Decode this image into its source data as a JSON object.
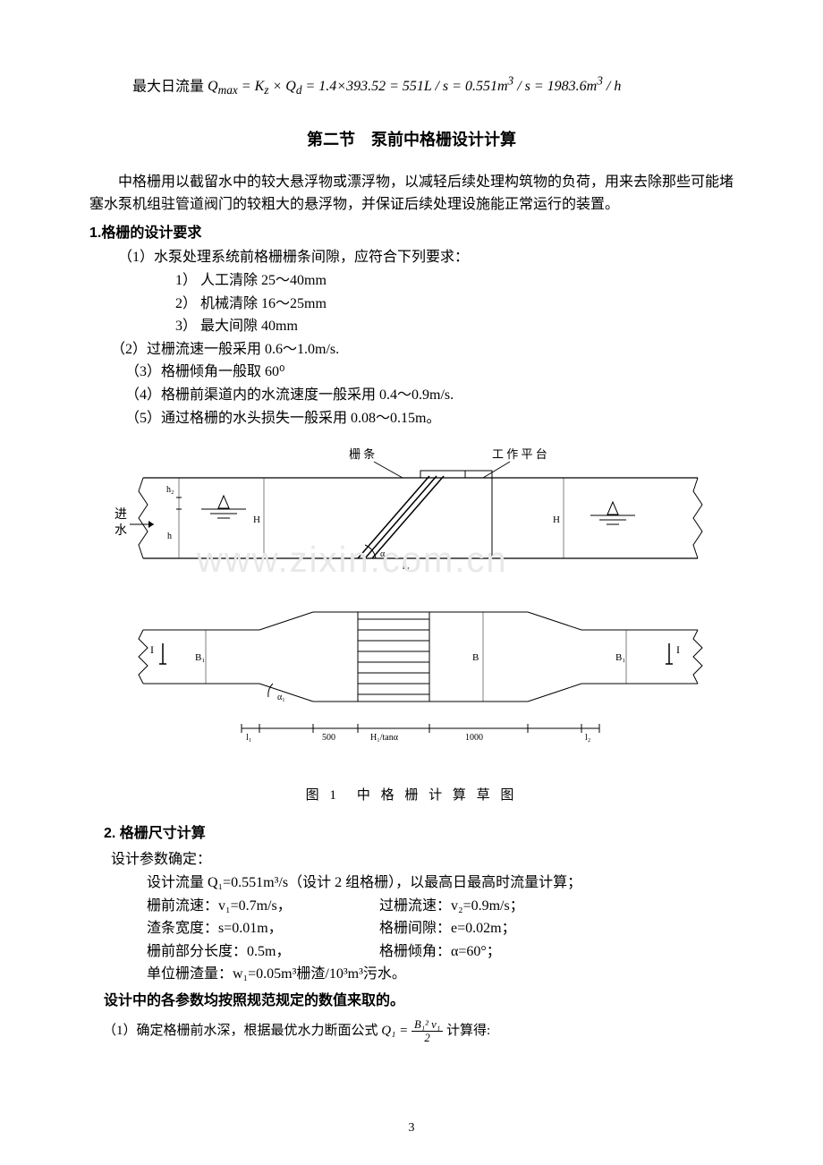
{
  "topFormula": {
    "prefix_cn": "最大日流量 ",
    "expr": "Q<sub>max</sub> = K<sub>z</sub> × Q<sub>d</sub> = 1.4×393.52 = 551L / s = 0.551m<sup>3</sup> / s = 1983.6m<sup>3</sup> / h"
  },
  "sectionTitle": "第二节　泵前中格栅设计计算",
  "intro": "中格栅用以截留水中的较大悬浮物或漂浮物，以减轻后续处理构筑物的负荷，用来去除那些可能堵塞水泵机组驻管道阀门的较粗大的悬浮物，并保证后续处理设施能正常运行的装置。",
  "h1": "1.格栅的设计要求",
  "req1": "（1）水泵处理系统前格栅栅条间隙，应符合下列要求：",
  "req1a": "1） 人工清除  25～40mm",
  "req1b": "2） 机械清除  16～25mm",
  "req1c": "3） 最大间隙  40mm",
  "req2": "（2）过栅流速一般采用 0.6～1.0m/s.",
  "req3": "（3）格栅倾角一般取 60⁰",
  "req4": "（4）格栅前渠道内的水流速度一般采用 0.4～0.9m/s.",
  "req5": "（5）通过格栅的水头损失一般采用 0.08～0.15m。",
  "diagram": {
    "label_bars": "栅 条",
    "label_platform": "工 作 平 台",
    "label_inlet1": "进",
    "label_inlet2": "水",
    "label_h2": "h₂",
    "label_H": "H",
    "label_h": "h",
    "label_alpha": "α",
    "label_h1": "h₁",
    "label_B1_left": "B₁",
    "label_B": "B",
    "label_B1_right": "B₁",
    "label_I": "I",
    "label_a1": "α₁",
    "dim_l1": "l₁",
    "dim_500": "500",
    "dim_Htan": "H₁/tanα",
    "dim_1000": "1000",
    "dim_l2": "l₂",
    "caption_prefix": "图 1　",
    "caption": "中 格 栅 计 算 草 图"
  },
  "watermark": "www.zixin.com.cn",
  "h2": "2. 格栅尺寸计算",
  "calc_intro": "设计参数确定：",
  "calc_l1": "设计流量 Q₁=0.551m³/s（设计 2 组格栅），以最高日最高时流量计算；",
  "calc_l2a": "栅前流速：v₁=0.7m/s，",
  "calc_l2b": "过栅流速：v₂=0.9m/s；",
  "calc_l3a": "渣条宽度：s=0.01m，",
  "calc_l3b": "格栅间隙：e=0.02m；",
  "calc_l4a": "栅前部分长度：0.5m，",
  "calc_l4b": "格栅倾角：α=60°；",
  "calc_l5": "单位栅渣量：w₁=0.05m³栅渣/10³m³污水。",
  "bold_note": "设计中的各参数均按照规范规定的数值来取的。",
  "calc_item1_pre": "（1）确定格栅前水深，根据最优水力断面公式",
  "calc_item1_frac_num": "B₁² v₁",
  "calc_item1_frac_den": "2",
  "calc_item1_q": "Q₁ = ",
  "calc_item1_post": " 计算得:",
  "pageNum": "3",
  "colors": {
    "text": "#000000",
    "bg": "#ffffff",
    "watermark": "#e8e8e8",
    "line": "#000000"
  }
}
